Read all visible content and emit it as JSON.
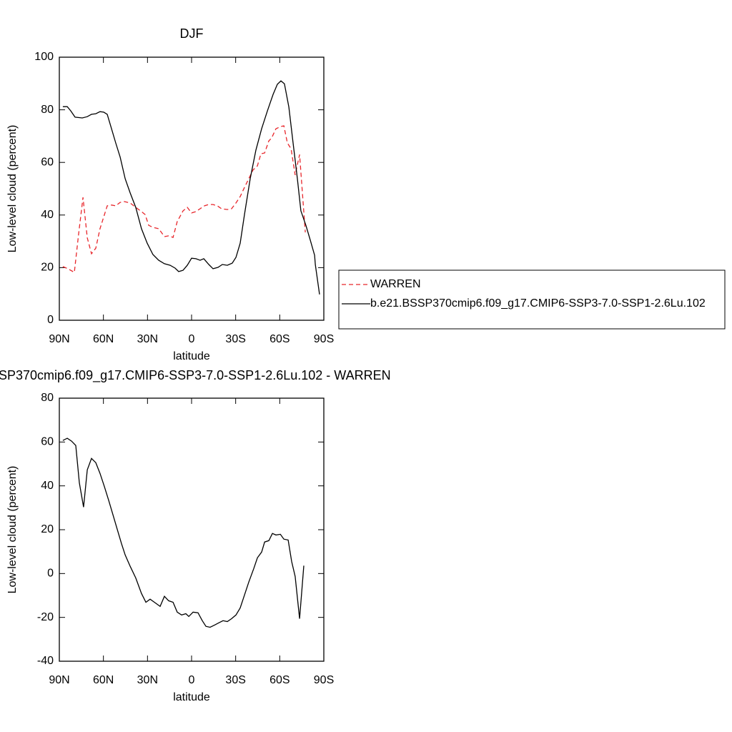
{
  "chart_data": [
    {
      "type": "line",
      "title": "DJF",
      "xlabel": "latitude",
      "ylabel": "Low-level cloud (percent)",
      "xlim": [
        90,
        -90
      ],
      "xticks": [
        {
          "value": 90,
          "label": "90N"
        },
        {
          "value": 60,
          "label": "60N"
        },
        {
          "value": 30,
          "label": "30N"
        },
        0,
        {
          "value": -30,
          "label": "30S"
        },
        {
          "value": -60,
          "label": "60S"
        },
        {
          "value": -90,
          "label": "90S"
        }
      ],
      "ylim": [
        0,
        100
      ],
      "yticks": [
        0,
        20,
        40,
        60,
        80,
        100
      ],
      "legend": "right",
      "series": [
        {
          "name": "WARREN",
          "color": "#e8262b",
          "dash": true,
          "x": [
            87.6,
            84.2,
            79.8,
            76.9,
            73.9,
            71,
            68.1,
            65.2,
            62.3,
            57.4,
            54.5,
            51.6,
            48.6,
            45.7,
            41.8,
            38,
            34.1,
            31.6,
            29.2,
            26.3,
            22.4,
            18.5,
            15.6,
            12.6,
            9.8,
            5.8,
            2.9,
            0,
            -2.9,
            -5.8,
            -8.8,
            -11.7,
            -14.6,
            -17.5,
            -20.4,
            -24.3,
            -27.2,
            -30.2,
            -33.1,
            -36,
            -38.9,
            -41.8,
            -44.8,
            -47.2,
            -49.7,
            -52.6,
            -54.5,
            -57.4,
            -60.4,
            -62.8,
            -65.2,
            -67.7,
            -70.5,
            -73.5,
            -77.4
          ],
          "values": [
            20.4,
            19.6,
            18.2,
            32.6,
            46.7,
            31.3,
            25.3,
            27.4,
            34.8,
            43.5,
            43.8,
            43.5,
            44.8,
            45.1,
            44.6,
            42.9,
            41.3,
            40.2,
            36.1,
            35.3,
            34.8,
            31.8,
            32.1,
            31.5,
            37.5,
            41.6,
            42.9,
            40.8,
            41.3,
            42.4,
            43.5,
            44,
            44,
            43.5,
            42.4,
            42.1,
            42.4,
            44.6,
            47,
            50.5,
            53.8,
            57.1,
            58.7,
            63.3,
            63.6,
            68.2,
            69.3,
            72.8,
            73.6,
            73.9,
            67.4,
            65.2,
            55.2,
            63,
            33.4
          ]
        },
        {
          "name": "b.e21.BSSP370cmip6.f09_g17.CMIP6-SSP3-7.0-SSP1-2.6Lu.102",
          "color": "#000000",
          "dash": false,
          "x": [
            87.6,
            84.6,
            82.2,
            79.3,
            74.4,
            71,
            68.1,
            65.2,
            62.3,
            59.8,
            57.4,
            54.5,
            51.6,
            48.6,
            45.2,
            41.8,
            38,
            34.1,
            30.2,
            26.3,
            22.4,
            18.5,
            14.6,
            11.2,
            8.8,
            5.8,
            2.9,
            0,
            -2.9,
            -5.8,
            -8.3,
            -11.7,
            -14.6,
            -18,
            -20.9,
            -24.3,
            -27.7,
            -30.2,
            -33.1,
            -36,
            -39.9,
            -43.8,
            -47.7,
            -51.6,
            -55.5,
            -58.4,
            -60.8,
            -63.2,
            -66.2,
            -69.1,
            -72,
            -74.4,
            -77.8,
            -80.8,
            -83.7,
            -84.2,
            -87.1
          ],
          "values": [
            81.2,
            81.2,
            79.6,
            77.2,
            76.9,
            77.4,
            78.3,
            78.5,
            79.3,
            79.1,
            78.3,
            72.8,
            67.4,
            62,
            53.8,
            48.4,
            42.9,
            34.8,
            29.3,
            25,
            22.8,
            21.5,
            20.9,
            19.8,
            18.5,
            19,
            20.9,
            23.6,
            23.4,
            22.8,
            23.4,
            21.2,
            19.6,
            20.1,
            21.2,
            20.9,
            21.7,
            23.9,
            29.3,
            40.2,
            53.8,
            64.7,
            72.8,
            79.6,
            85.9,
            89.7,
            91,
            89.9,
            81,
            67.4,
            53.8,
            41.6,
            36.1,
            30.4,
            24.7,
            21.2,
            9.8
          ]
        }
      ]
    },
    {
      "type": "line",
      "title": "SP370cmip6.f09_g17.CMIP6-SSP3-7.0-SSP1-2.6Lu.102 - WARREN",
      "xlabel": "latitude",
      "ylabel": "Low-level cloud (percent)",
      "xlim": [
        90,
        -90
      ],
      "xticks": [
        {
          "value": 90,
          "label": "90N"
        },
        {
          "value": 60,
          "label": "60N"
        },
        {
          "value": 30,
          "label": "30N"
        },
        0,
        {
          "value": -30,
          "label": "30S"
        },
        {
          "value": -60,
          "label": "60S"
        },
        {
          "value": -90,
          "label": "90S"
        }
      ],
      "ylim": [
        -40,
        80
      ],
      "yticks": [
        -40,
        -20,
        0,
        20,
        40,
        60,
        80
      ],
      "series": [
        {
          "color": "#000000",
          "dash": false,
          "x": [
            87.6,
            84.6,
            81.7,
            78.8,
            76.4,
            73.5,
            71,
            68.1,
            65.2,
            62.3,
            59.4,
            56.4,
            53.5,
            50.6,
            47.7,
            45.2,
            41.8,
            38,
            34.1,
            31.1,
            28.2,
            25.3,
            21.4,
            18.5,
            15.6,
            12.6,
            9.8,
            6.8,
            3.9,
            1.9,
            -1,
            -4.4,
            -7.3,
            -9.8,
            -12.6,
            -15.6,
            -18.5,
            -21.4,
            -24.3,
            -27.2,
            -30.2,
            -33.1,
            -36,
            -38.9,
            -42.3,
            -44.8,
            -47.7,
            -49.7,
            -52.6,
            -55,
            -57.4,
            -60.4,
            -62.8,
            -65.7,
            -68.1,
            -70.5,
            -73.5,
            -76.4
          ],
          "values": [
            60.7,
            61.7,
            60.4,
            58.4,
            41.4,
            30.3,
            47.3,
            52.5,
            50.6,
            45.7,
            39.8,
            33.3,
            26.8,
            20.2,
            13.7,
            8.5,
            3.3,
            -2,
            -9.1,
            -13.1,
            -11.7,
            -13.1,
            -15,
            -10.4,
            -12.4,
            -13.1,
            -17.6,
            -18.9,
            -18.3,
            -19.6,
            -17.6,
            -17.9,
            -21.5,
            -24.1,
            -24.5,
            -23.5,
            -22.5,
            -21.5,
            -21.9,
            -20.6,
            -18.9,
            -15.7,
            -9.8,
            -3.9,
            2.3,
            7.2,
            9.8,
            14.4,
            15,
            18.3,
            17.6,
            17.9,
            15.7,
            15.3,
            5.5,
            -1.3,
            -20.6,
            3.6
          ]
        }
      ]
    }
  ]
}
